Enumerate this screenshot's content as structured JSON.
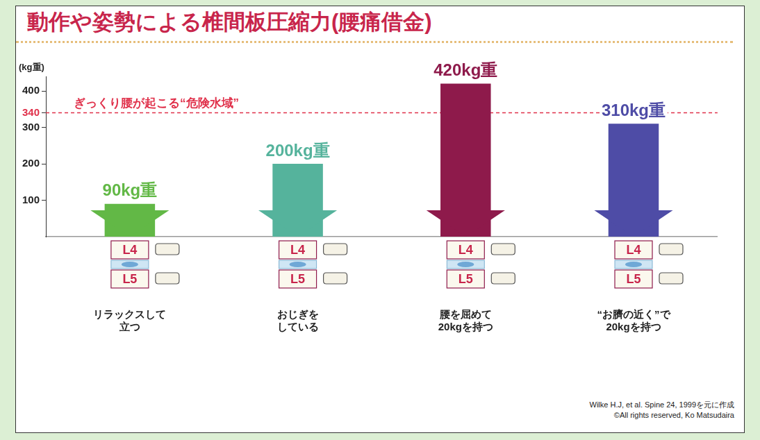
{
  "chart_data": {
    "type": "bar",
    "title": "動作や姿勢による椎間板圧縮力(腰痛借金)",
    "y_label": "(kg重)",
    "categories": [
      [
        "リラックスして",
        "立つ"
      ],
      [
        "おじぎを",
        "している"
      ],
      [
        "腰を屈めて",
        "20kgを持つ"
      ],
      [
        "“お臍の近く”で",
        "20kgを持つ"
      ]
    ],
    "values": [
      90,
      200,
      420,
      310
    ],
    "value_labels": [
      "90kg重",
      "200kg重",
      "420kg重",
      "310kg重"
    ],
    "colors": [
      "#62b846",
      "#55b39c",
      "#8e1a4b",
      "#4e4ca6"
    ],
    "ylim": [
      0,
      440
    ],
    "yticks": [
      100,
      200,
      300,
      340,
      400
    ],
    "grid": false,
    "data_labels": true,
    "annotations": [
      {
        "text": "ぎっくり腰が起こる“危険水域”",
        "value": 340,
        "color": "#e0304a"
      }
    ],
    "vertebrae": [
      "L4",
      "L5"
    ],
    "source": "Wilke H.J, et al. Spine 24, 1999を元に作成",
    "copyright": "©All rights reserved, Ko Matsudaira"
  }
}
